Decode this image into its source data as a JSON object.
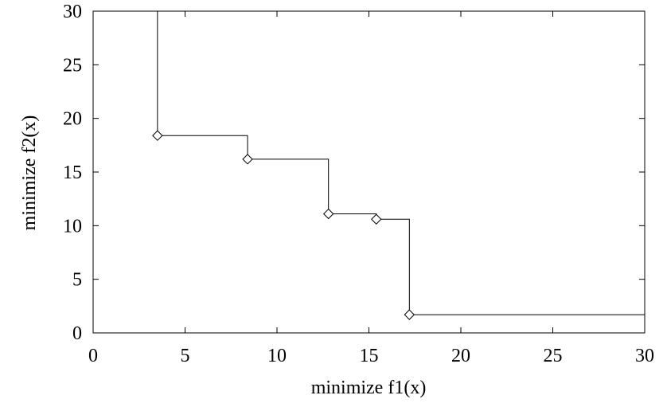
{
  "chart_data": {
    "type": "line",
    "title": "",
    "xlabel": "minimize f1(x)",
    "ylabel": "minimize f2(x)",
    "xlim": [
      0,
      30
    ],
    "ylim": [
      0,
      30
    ],
    "xticks": [
      0,
      5,
      10,
      15,
      20,
      25,
      30
    ],
    "yticks": [
      0,
      5,
      10,
      15,
      20,
      25,
      30
    ],
    "xtick_labels": [
      "0",
      "5",
      "10",
      "15",
      "20",
      "25",
      "30"
    ],
    "ytick_labels": [
      "0",
      "5",
      "10",
      "15",
      "20",
      "25",
      "30"
    ],
    "grid": false,
    "legend": "none",
    "series": [
      {
        "marker": "diamond",
        "step": "attainment-surface",
        "points": [
          {
            "x": 3.5,
            "y": 18.4
          },
          {
            "x": 8.4,
            "y": 16.2
          },
          {
            "x": 12.8,
            "y": 11.1
          },
          {
            "x": 15.4,
            "y": 10.6
          },
          {
            "x": 17.2,
            "y": 1.7
          }
        ]
      }
    ]
  }
}
